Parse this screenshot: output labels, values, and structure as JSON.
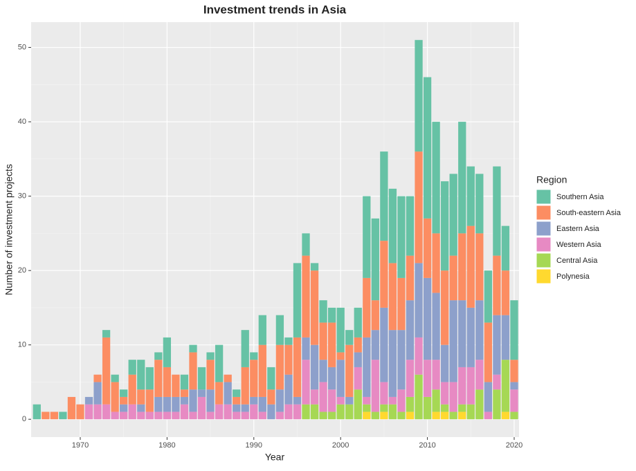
{
  "chart_data": {
    "type": "stacked_bar",
    "title": "Investment trends in Asia",
    "x_label": "Year",
    "y_label": "Number of investment projects",
    "legend_title": "Region",
    "legend_position": "right",
    "x": [
      1965,
      1966,
      1967,
      1968,
      1969,
      1970,
      1971,
      1972,
      1973,
      1974,
      1975,
      1976,
      1977,
      1978,
      1979,
      1980,
      1981,
      1982,
      1983,
      1984,
      1985,
      1986,
      1987,
      1988,
      1989,
      1990,
      1991,
      1992,
      1993,
      1994,
      1995,
      1996,
      1997,
      1998,
      1999,
      2000,
      2001,
      2002,
      2003,
      2004,
      2005,
      2006,
      2007,
      2008,
      2009,
      2010,
      2011,
      2012,
      2013,
      2014,
      2015,
      2016,
      2017,
      2018,
      2019,
      2020
    ],
    "series": [
      {
        "name": "Southern Asia",
        "color": "#66c2a5",
        "values": [
          2,
          0,
          0,
          1,
          0,
          0,
          0,
          0,
          1,
          1,
          1,
          2,
          4,
          3,
          1,
          4,
          0,
          2,
          1,
          3,
          1,
          5,
          0,
          1,
          5,
          1,
          4,
          3,
          4,
          1,
          10,
          3,
          1,
          3,
          2,
          6,
          2,
          4,
          11,
          11,
          12,
          10,
          11,
          8,
          15,
          19,
          15,
          12,
          11,
          15,
          8,
          8,
          7,
          12,
          6,
          8
        ]
      },
      {
        "name": "South-eastern Asia",
        "color": "#fc8d62",
        "values": [
          0,
          1,
          1,
          0,
          3,
          2,
          0,
          1,
          9,
          4,
          1,
          4,
          2,
          3,
          5,
          4,
          3,
          1,
          5,
          0,
          4,
          3,
          1,
          1,
          5,
          5,
          7,
          2,
          6,
          4,
          8,
          11,
          10,
          5,
          6,
          1,
          7,
          2,
          8,
          4,
          9,
          9,
          7,
          6,
          15,
          8,
          8,
          10,
          6,
          9,
          11,
          9,
          8,
          8,
          6,
          3
        ]
      },
      {
        "name": "Eastern Asia",
        "color": "#8da0cb",
        "values": [
          0,
          0,
          0,
          0,
          0,
          0,
          1,
          3,
          0,
          0,
          1,
          0,
          1,
          0,
          2,
          2,
          2,
          1,
          3,
          1,
          3,
          0,
          3,
          1,
          1,
          1,
          2,
          2,
          3,
          4,
          1,
          3,
          6,
          3,
          3,
          5,
          1,
          2,
          8,
          4,
          10,
          9,
          8,
          8,
          10,
          11,
          9,
          5,
          11,
          9,
          8,
          8,
          4,
          8,
          6,
          1
        ]
      },
      {
        "name": "Western Asia",
        "color": "#e78ac3",
        "values": [
          0,
          0,
          0,
          0,
          0,
          0,
          2,
          2,
          2,
          1,
          1,
          2,
          1,
          1,
          1,
          1,
          1,
          2,
          1,
          3,
          1,
          2,
          2,
          1,
          1,
          2,
          1,
          0,
          1,
          2,
          2,
          6,
          2,
          4,
          3,
          1,
          0,
          3,
          1,
          7,
          3,
          1,
          3,
          5,
          5,
          5,
          4,
          3,
          4,
          5,
          5,
          4,
          1,
          2,
          0,
          3
        ]
      },
      {
        "name": "Central Asia",
        "color": "#a6d854",
        "values": [
          0,
          0,
          0,
          0,
          0,
          0,
          0,
          0,
          0,
          0,
          0,
          0,
          0,
          0,
          0,
          0,
          0,
          0,
          0,
          0,
          0,
          0,
          0,
          0,
          0,
          0,
          0,
          0,
          0,
          0,
          0,
          2,
          2,
          1,
          1,
          2,
          2,
          4,
          1,
          1,
          1,
          2,
          1,
          2,
          6,
          3,
          3,
          1,
          1,
          1,
          2,
          4,
          0,
          4,
          7,
          1
        ]
      },
      {
        "name": "Polynesia",
        "color": "#ffd92f",
        "values": [
          0,
          0,
          0,
          0,
          0,
          0,
          0,
          0,
          0,
          0,
          0,
          0,
          0,
          0,
          0,
          0,
          0,
          0,
          0,
          0,
          0,
          0,
          0,
          0,
          0,
          0,
          0,
          0,
          0,
          0,
          0,
          0,
          0,
          0,
          0,
          0,
          0,
          0,
          1,
          0,
          1,
          0,
          0,
          1,
          0,
          0,
          1,
          1,
          0,
          1,
          0,
          0,
          0,
          0,
          1,
          0
        ]
      }
    ],
    "xlim": [
      1964.34,
      2020.56
    ],
    "xticks": [
      1970,
      1980,
      1990,
      2000,
      2010,
      2020
    ],
    "ylim": [
      -2.4,
      53.4
    ],
    "yticks": [
      0,
      10,
      20,
      30,
      40,
      50
    ],
    "grid": true
  }
}
